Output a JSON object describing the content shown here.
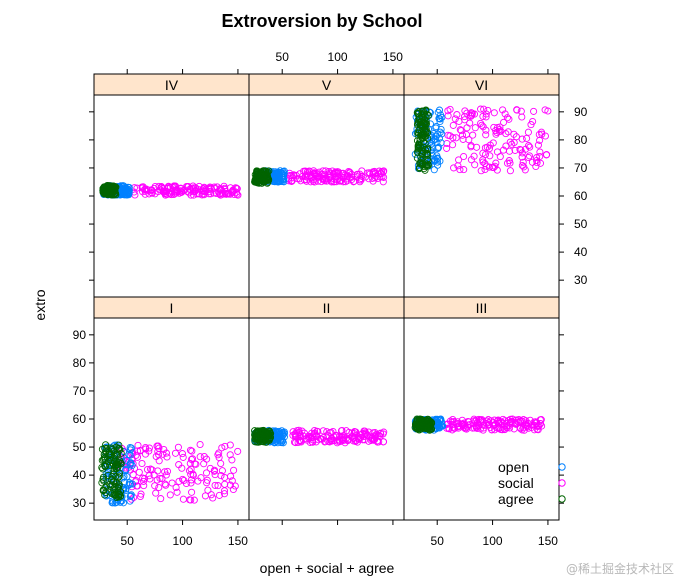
{
  "chart_data": {
    "type": "scatter",
    "title": "Extroversion by School",
    "xlabel": "open + social + agree",
    "ylabel": "extro",
    "xlim": [
      20,
      160
    ],
    "ylim": [
      24,
      96
    ],
    "x_ticks": [
      50,
      100,
      150
    ],
    "y_ticks": [
      30,
      40,
      50,
      60,
      70,
      80,
      90
    ],
    "series": [
      {
        "name": "open",
        "color": "#0080ff"
      },
      {
        "name": "social",
        "color": "#ff00ff"
      },
      {
        "name": "agree",
        "color": "#006400"
      }
    ],
    "panels": [
      {
        "label": "IV",
        "row": "top",
        "col": 0,
        "groups": {
          "open": {
            "x": [
              28,
              52
            ],
            "y": [
              60.3,
              63.7
            ]
          },
          "social": {
            "x": [
              55,
              150
            ],
            "y": [
              60.3,
              63.7
            ]
          },
          "agree": {
            "x": [
              28,
              40
            ],
            "y": [
              60.3,
              63.7
            ]
          }
        }
      },
      {
        "label": "V",
        "row": "top",
        "col": 1,
        "groups": {
          "open": {
            "x": [
              30,
              52
            ],
            "y": [
              65,
              69
            ]
          },
          "social": {
            "x": [
              55,
              143
            ],
            "y": [
              65,
              69
            ]
          },
          "agree": {
            "x": [
              25,
              38
            ],
            "y": [
              64.5,
              69
            ]
          }
        }
      },
      {
        "label": "VI",
        "row": "top",
        "col": 2,
        "groups": {
          "open": {
            "x": [
              30,
              55
            ],
            "y": [
              69,
              91
            ]
          },
          "social": {
            "x": [
              58,
              150
            ],
            "y": [
              69,
              91
            ]
          },
          "agree": {
            "x": [
              32,
              42
            ],
            "y": [
              69,
              91
            ]
          }
        }
      },
      {
        "label": "I",
        "row": "bottom",
        "col": 0,
        "groups": {
          "open": {
            "x": [
              30,
              55
            ],
            "y": [
              30,
              51
            ]
          },
          "social": {
            "x": [
              45,
              150
            ],
            "y": [
              31,
              51
            ]
          },
          "agree": {
            "x": [
              27,
              45
            ],
            "y": [
              32,
              51
            ]
          }
        }
      },
      {
        "label": "II",
        "row": "bottom",
        "col": 1,
        "groups": {
          "open": {
            "x": [
              25,
              52
            ],
            "y": [
              51.5,
              56
            ]
          },
          "social": {
            "x": [
              58,
              142
            ],
            "y": [
              51.5,
              56
            ]
          },
          "agree": {
            "x": [
              25,
              40
            ],
            "y": [
              51.5,
              56
            ]
          }
        }
      },
      {
        "label": "III",
        "row": "bottom",
        "col": 2,
        "groups": {
          "open": {
            "x": [
              30,
              55
            ],
            "y": [
              56,
              60
            ]
          },
          "social": {
            "x": [
              58,
              145
            ],
            "y": [
              56,
              60
            ]
          },
          "agree": {
            "x": [
              30,
              45
            ],
            "y": [
              56,
              60
            ]
          }
        }
      }
    ],
    "legend": {
      "position": "bottom-right of panel III",
      "entries": [
        "open",
        "social",
        "agree"
      ]
    }
  },
  "watermark": "@稀土掘金技术社区"
}
